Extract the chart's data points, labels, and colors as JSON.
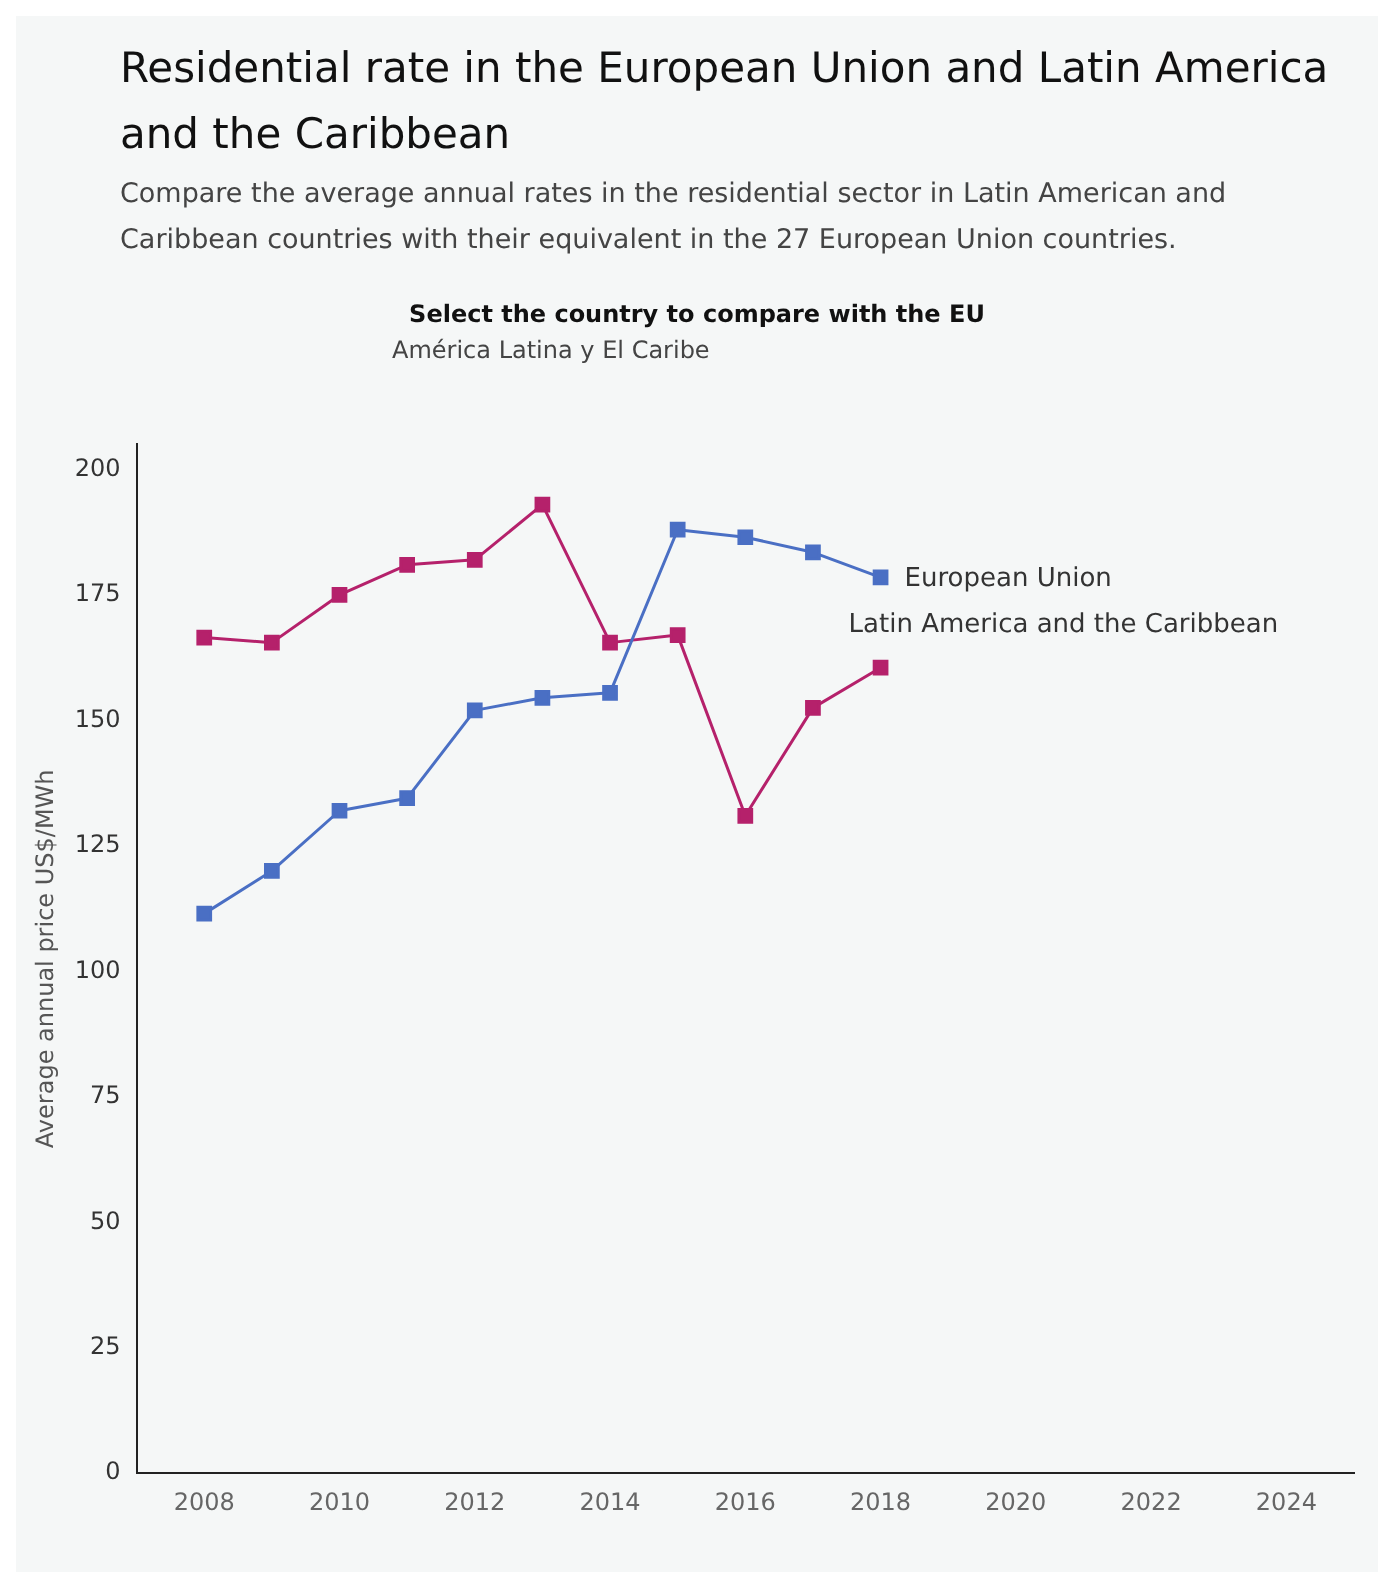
{
  "chart_data": {
    "type": "line",
    "title": "Residential rate in the European Union and Latin America and the Caribbean",
    "subtitle": "Compare the average annual rates in the residential sector in Latin American and Caribbean countries with their equivalent in the 27 European Union countries.",
    "annotations": [
      "Select the country to compare with the EU",
      "América Latina y El Caribe"
    ],
    "ylabel": "Average annual price US$/MWh",
    "x": [
      2008,
      2009,
      2010,
      2011,
      2012,
      2013,
      2014,
      2015,
      2016,
      2017,
      2018
    ],
    "series": [
      {
        "name": "European Union",
        "color": "#4a6fc4",
        "values": [
          111.5,
          120,
          132,
          134.5,
          152,
          154.5,
          155.5,
          188,
          186.5,
          183.5,
          178.5
        ]
      },
      {
        "name": "Latin America and the Caribbean",
        "color": "#b5216b",
        "values": [
          166.5,
          165.5,
          175,
          181,
          182,
          193,
          165.5,
          167,
          131,
          152.5,
          160.5
        ]
      }
    ],
    "xlim": [
      2007,
      2025
    ],
    "xticks": [
      2008,
      2010,
      2012,
      2014,
      2016,
      2018,
      2020,
      2022,
      2024
    ],
    "ylim": [
      0,
      205
    ],
    "yticks": [
      0,
      25,
      50,
      75,
      100,
      125,
      150,
      175,
      200
    ],
    "grid": false,
    "legend": false,
    "marker": "square",
    "line_style": "solid"
  }
}
